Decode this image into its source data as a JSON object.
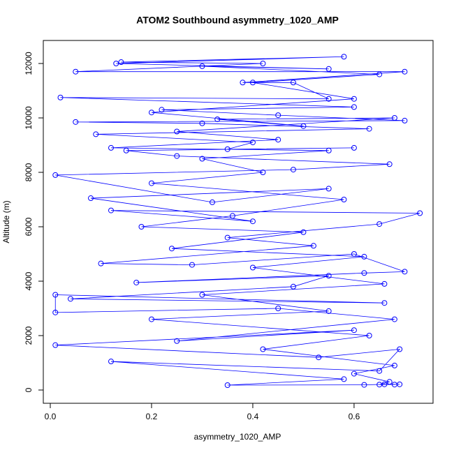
{
  "chart_data": {
    "type": "line",
    "title": "ATOM2 Southbound asymmetry_1020_AMP",
    "x_label": "asymmetry_1020_AMP",
    "y_label": "Altitude (m)",
    "xlim": [
      -0.0138,
      0.756
    ],
    "ylim": [
      -487,
      12846
    ],
    "xticks": [
      {
        "value": 0,
        "label": "0.0"
      },
      0.2,
      0.4,
      0.6
    ],
    "yticks": [
      0,
      2000,
      4000,
      6000,
      8000,
      10000,
      12000
    ],
    "color": "#0000ff",
    "markers": true,
    "x": [
      0.68,
      0.66,
      0.62,
      0.35,
      0.58,
      0.12,
      0.65,
      0.69,
      0.53,
      0.01,
      0.6,
      0.25,
      0.68,
      0.45,
      0.01,
      0.01,
      0.66,
      0.04,
      0.48,
      0.55,
      0.17,
      0.62,
      0.7,
      0.6,
      0.28,
      0.1,
      0.52,
      0.35,
      0.65,
      0.73,
      0.12,
      0.4,
      0.08,
      0.55,
      0.32,
      0.01,
      0.48,
      0.67,
      0.25,
      0.15,
      0.6,
      0.35,
      0.4,
      0.09,
      0.63,
      0.3,
      0.05,
      0.7,
      0.45,
      0.22,
      0.6,
      0.02,
      0.55,
      0.48,
      0.38,
      0.7,
      0.05,
      0.42,
      0.14,
      0.58,
      0.13,
      0.55,
      0.3,
      0.65,
      0.4,
      0.6,
      0.2,
      0.5,
      0.33,
      0.68,
      0.25,
      0.45,
      0.12,
      0.55,
      0.3,
      0.42,
      0.2,
      0.58,
      0.36,
      0.18,
      0.5,
      0.24,
      0.62,
      0.4,
      0.66,
      0.3,
      0.55,
      0.2,
      0.63,
      0.42,
      0.68,
      0.6,
      0.67,
      0.65,
      0.69
    ],
    "values": [
      200,
      210,
      190,
      180,
      400,
      1050,
      700,
      1500,
      1200,
      1650,
      2200,
      1800,
      2600,
      3000,
      2850,
      3500,
      3200,
      3350,
      3800,
      4200,
      3950,
      4300,
      4350,
      5000,
      4600,
      4650,
      5300,
      5600,
      6100,
      6500,
      6600,
      6200,
      7050,
      7400,
      6900,
      7900,
      8100,
      8300,
      8600,
      8800,
      8900,
      8850,
      9100,
      9400,
      9600,
      9800,
      9850,
      9900,
      10100,
      10300,
      10400,
      10750,
      10700,
      11300,
      11300,
      11700,
      11700,
      12000,
      12050,
      12250,
      12000,
      11800,
      11900,
      11600,
      11300,
      10700,
      10200,
      9700,
      9950,
      10000,
      9500,
      9200,
      8900,
      8800,
      8500,
      8000,
      7600,
      7000,
      6400,
      6000,
      5800,
      5200,
      4900,
      4500,
      3900,
      3500,
      2900,
      2600,
      2000,
      1500,
      900,
      600,
      300,
      200,
      210
    ]
  }
}
